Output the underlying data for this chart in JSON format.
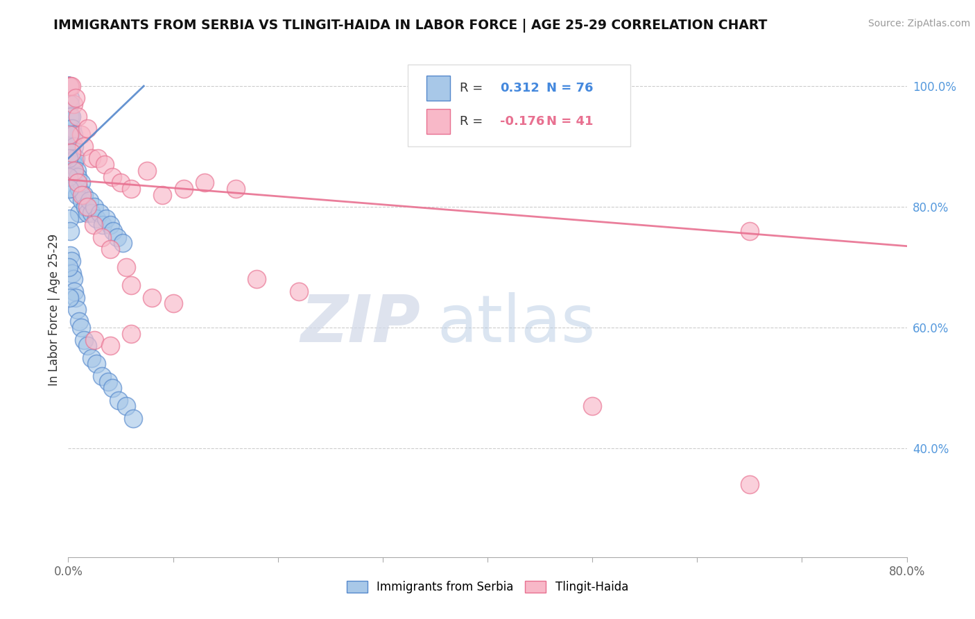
{
  "title": "IMMIGRANTS FROM SERBIA VS TLINGIT-HAIDA IN LABOR FORCE | AGE 25-29 CORRELATION CHART",
  "source": "Source: ZipAtlas.com",
  "ylabel": "In Labor Force | Age 25-29",
  "xlim": [
    0.0,
    0.8
  ],
  "ylim": [
    0.22,
    1.04
  ],
  "xtick_positions": [
    0.0,
    0.1,
    0.2,
    0.3,
    0.4,
    0.5,
    0.6,
    0.7,
    0.8
  ],
  "xticklabels": [
    "0.0%",
    "",
    "",
    "",
    "",
    "",
    "",
    "",
    "80.0%"
  ],
  "yticks_right": [
    0.4,
    0.6,
    0.8,
    1.0
  ],
  "yticklabels_right": [
    "40.0%",
    "60.0%",
    "80.0%",
    "100.0%"
  ],
  "blue_color": "#a8c8e8",
  "blue_edge": "#5588cc",
  "pink_color": "#f8b8c8",
  "pink_edge": "#e87090",
  "blue_R": 0.312,
  "blue_N": 76,
  "pink_R": -0.176,
  "pink_N": 41,
  "watermark_zip": "ZIP",
  "watermark_atlas": "atlas",
  "blue_line_x": [
    0.0,
    0.072
  ],
  "blue_line_y": [
    0.88,
    1.0
  ],
  "pink_line_x": [
    0.0,
    0.8
  ],
  "pink_line_y": [
    0.845,
    0.735
  ],
  "blue_x": [
    0.0005,
    0.0005,
    0.0005,
    0.0005,
    0.0005,
    0.0007,
    0.0007,
    0.001,
    0.001,
    0.001,
    0.001,
    0.001,
    0.0015,
    0.0015,
    0.002,
    0.002,
    0.002,
    0.0025,
    0.003,
    0.003,
    0.003,
    0.004,
    0.004,
    0.005,
    0.005,
    0.005,
    0.006,
    0.006,
    0.007,
    0.008,
    0.008,
    0.009,
    0.01,
    0.01,
    0.012,
    0.013,
    0.015,
    0.016,
    0.018,
    0.02,
    0.022,
    0.025,
    0.027,
    0.03,
    0.033,
    0.036,
    0.04,
    0.043,
    0.047,
    0.052,
    0.0005,
    0.0007,
    0.001,
    0.001,
    0.002,
    0.002,
    0.003,
    0.004,
    0.005,
    0.006,
    0.007,
    0.008,
    0.01,
    0.012,
    0.015,
    0.018,
    0.022,
    0.027,
    0.032,
    0.038,
    0.042,
    0.048,
    0.055,
    0.062,
    0.0005,
    0.0008
  ],
  "blue_y": [
    1.0,
    1.0,
    1.0,
    1.0,
    1.0,
    1.0,
    1.0,
    1.0,
    1.0,
    1.0,
    0.97,
    0.95,
    0.98,
    0.93,
    0.97,
    0.95,
    0.9,
    0.92,
    0.95,
    0.9,
    0.87,
    0.93,
    0.88,
    0.92,
    0.87,
    0.83,
    0.9,
    0.86,
    0.88,
    0.86,
    0.82,
    0.85,
    0.83,
    0.79,
    0.84,
    0.81,
    0.82,
    0.8,
    0.79,
    0.81,
    0.79,
    0.8,
    0.78,
    0.79,
    0.77,
    0.78,
    0.77,
    0.76,
    0.75,
    0.74,
    0.88,
    0.85,
    0.83,
    0.78,
    0.76,
    0.72,
    0.71,
    0.69,
    0.68,
    0.66,
    0.65,
    0.63,
    0.61,
    0.6,
    0.58,
    0.57,
    0.55,
    0.54,
    0.52,
    0.51,
    0.5,
    0.48,
    0.47,
    0.45,
    0.7,
    0.65
  ],
  "pink_x": [
    0.001,
    0.002,
    0.003,
    0.005,
    0.007,
    0.009,
    0.012,
    0.015,
    0.018,
    0.022,
    0.028,
    0.035,
    0.042,
    0.05,
    0.06,
    0.075,
    0.09,
    0.11,
    0.13,
    0.16,
    0.001,
    0.003,
    0.006,
    0.009,
    0.013,
    0.018,
    0.024,
    0.032,
    0.04,
    0.055,
    0.18,
    0.22,
    0.65,
    0.06,
    0.08,
    0.1,
    0.025,
    0.04,
    0.06,
    0.5,
    0.65
  ],
  "pink_y": [
    1.0,
    1.0,
    1.0,
    0.97,
    0.98,
    0.95,
    0.92,
    0.9,
    0.93,
    0.88,
    0.88,
    0.87,
    0.85,
    0.84,
    0.83,
    0.86,
    0.82,
    0.83,
    0.84,
    0.83,
    0.92,
    0.89,
    0.86,
    0.84,
    0.82,
    0.8,
    0.77,
    0.75,
    0.73,
    0.7,
    0.68,
    0.66,
    0.76,
    0.67,
    0.65,
    0.64,
    0.58,
    0.57,
    0.59,
    0.47,
    0.34
  ]
}
